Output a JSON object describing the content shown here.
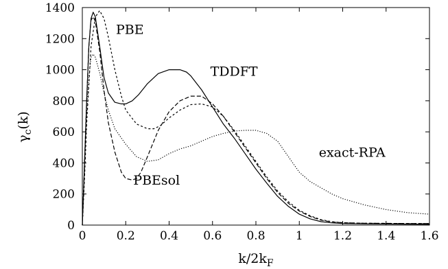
{
  "chart_data": {
    "type": "line",
    "title": "",
    "xlabel": "k/2k_F",
    "ylabel": "γ_c(k)",
    "xlim": [
      0,
      1.6
    ],
    "ylim": [
      0,
      1400
    ],
    "xticks": [
      "0",
      "0.2",
      "0.4",
      "0.6",
      "0.8",
      "1",
      "1.2",
      "1.4",
      "1.6"
    ],
    "yticks": [
      "0",
      "200",
      "400",
      "600",
      "800",
      "1000",
      "1200",
      "1400"
    ],
    "grid": false,
    "legend": "inline labels",
    "series": [
      {
        "name": "TDDFT",
        "style": "solid",
        "x": [
          0,
          0.01,
          0.02,
          0.03,
          0.04,
          0.05,
          0.06,
          0.08,
          0.1,
          0.12,
          0.15,
          0.18,
          0.2,
          0.23,
          0.26,
          0.3,
          0.35,
          0.4,
          0.43,
          0.45,
          0.48,
          0.5,
          0.55,
          0.6,
          0.65,
          0.7,
          0.75,
          0.8,
          0.85,
          0.9,
          0.95,
          1.0,
          1.05,
          1.1,
          1.15,
          1.2,
          1.3,
          1.4,
          1.5,
          1.6
        ],
        "y": [
          0,
          400,
          800,
          1150,
          1330,
          1370,
          1340,
          1150,
          950,
          850,
          790,
          780,
          780,
          800,
          840,
          910,
          975,
          1000,
          1000,
          1000,
          985,
          960,
          870,
          760,
          650,
          560,
          460,
          360,
          270,
          185,
          120,
          70,
          40,
          22,
          14,
          10,
          8,
          7,
          6,
          5
        ]
      },
      {
        "name": "PBE",
        "style": "dashed-fine",
        "x": [
          0,
          0.01,
          0.02,
          0.04,
          0.06,
          0.08,
          0.1,
          0.12,
          0.15,
          0.18,
          0.2,
          0.25,
          0.3,
          0.33,
          0.36,
          0.4,
          0.45,
          0.5,
          0.55,
          0.6,
          0.65,
          0.7,
          0.75,
          0.8,
          0.85,
          0.9,
          0.95,
          1.0,
          1.05,
          1.1,
          1.15,
          1.2,
          1.3,
          1.4,
          1.5,
          1.6
        ],
        "y": [
          0,
          300,
          650,
          1150,
          1340,
          1380,
          1330,
          1210,
          1000,
          830,
          740,
          650,
          620,
          620,
          640,
          690,
          740,
          775,
          780,
          760,
          700,
          610,
          510,
          410,
          310,
          220,
          150,
          95,
          60,
          35,
          22,
          15,
          12,
          11,
          10,
          10
        ]
      },
      {
        "name": "PBEsol",
        "style": "dashed",
        "x": [
          0,
          0.01,
          0.02,
          0.03,
          0.04,
          0.05,
          0.06,
          0.08,
          0.1,
          0.12,
          0.15,
          0.18,
          0.2,
          0.23,
          0.25,
          0.27,
          0.3,
          0.35,
          0.4,
          0.45,
          0.5,
          0.55,
          0.6,
          0.65,
          0.7,
          0.75,
          0.8,
          0.85,
          0.9,
          0.95,
          1.0,
          1.05,
          1.1,
          1.15,
          1.2,
          1.3,
          1.4,
          1.5,
          1.6
        ],
        "y": [
          0,
          400,
          800,
          1150,
          1320,
          1340,
          1310,
          1120,
          870,
          660,
          470,
          340,
          300,
          290,
          300,
          340,
          440,
          610,
          730,
          800,
          830,
          830,
          780,
          700,
          600,
          500,
          400,
          300,
          210,
          140,
          90,
          55,
          32,
          20,
          15,
          12,
          11,
          10,
          10
        ]
      },
      {
        "name": "exact-RPA",
        "style": "dotted",
        "x": [
          0,
          0.01,
          0.02,
          0.03,
          0.04,
          0.05,
          0.06,
          0.08,
          0.1,
          0.12,
          0.15,
          0.2,
          0.25,
          0.3,
          0.35,
          0.4,
          0.45,
          0.5,
          0.55,
          0.6,
          0.65,
          0.7,
          0.75,
          0.8,
          0.85,
          0.9,
          0.95,
          1.0,
          1.05,
          1.1,
          1.15,
          1.2,
          1.3,
          1.4,
          1.5,
          1.6
        ],
        "y": [
          0,
          350,
          700,
          950,
          1080,
          1100,
          1080,
          980,
          850,
          740,
          620,
          520,
          440,
          410,
          420,
          460,
          490,
          510,
          540,
          570,
          590,
          605,
          610,
          610,
          590,
          540,
          440,
          340,
          280,
          240,
          200,
          170,
          130,
          100,
          80,
          70
        ]
      }
    ],
    "annotations": [
      {
        "text": "PBE",
        "x": 0.155,
        "y": 1230
      },
      {
        "text": "TDDFT",
        "x": 0.59,
        "y": 960
      },
      {
        "text": "PBEsol",
        "x": 0.235,
        "y": 260
      },
      {
        "text": "exact-RPA",
        "x": 1.09,
        "y": 440
      }
    ]
  }
}
